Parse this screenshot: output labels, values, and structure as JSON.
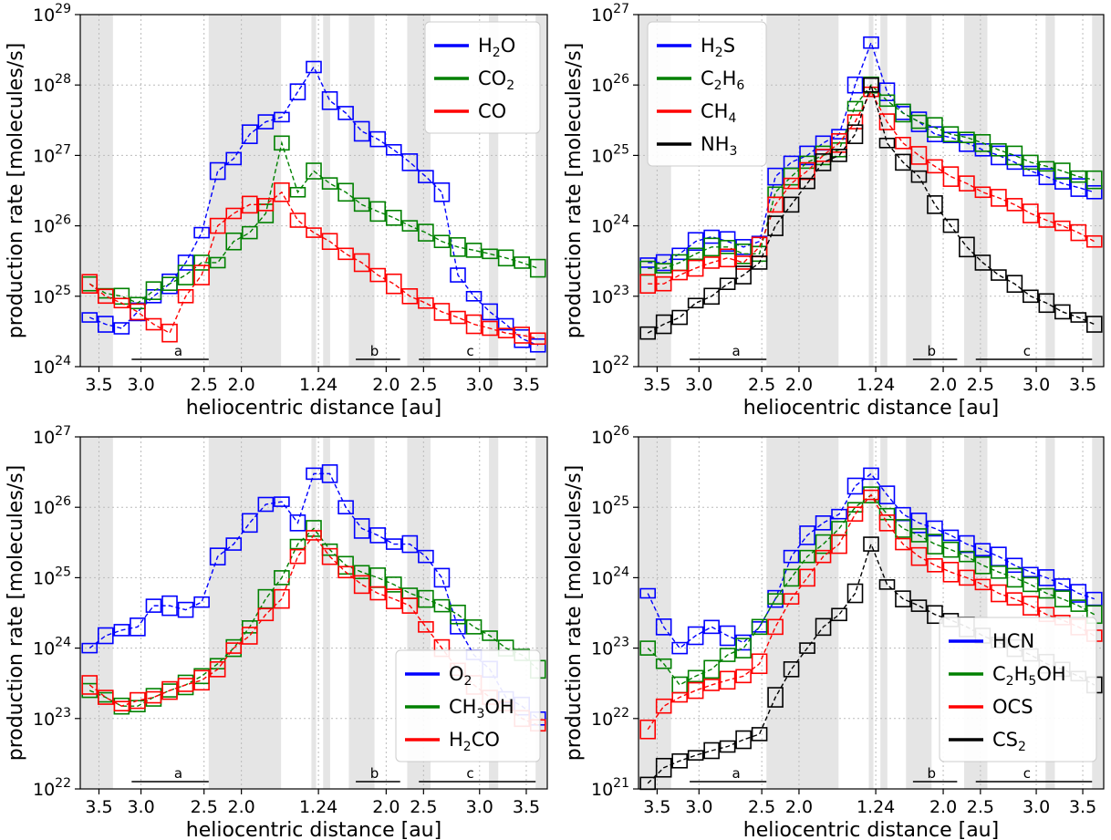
{
  "chart_data": [
    {
      "type": "scatter",
      "xlabel": "heliocentric distance [au]",
      "ylabel": "production rate [molecules/s]",
      "y_scale": "log",
      "ylim": [
        1e+24,
        1e+29
      ],
      "y_ticks": [
        {
          "base": "10",
          "exp": "24"
        },
        {
          "base": "10",
          "exp": "25"
        },
        {
          "base": "10",
          "exp": "26"
        },
        {
          "base": "10",
          "exp": "27"
        },
        {
          "base": "10",
          "exp": "28"
        },
        {
          "base": "10",
          "exp": "29"
        }
      ],
      "x_ticks": [
        "3.5",
        "3.0",
        "2.5",
        "2.0",
        "1.24",
        "2.0",
        "2.5",
        "3.0",
        "3.5"
      ],
      "grid": true,
      "legend_position": "top-right",
      "segments": [
        "a",
        "b",
        "c"
      ],
      "series": [
        {
          "name": "H2O",
          "color": "#0000ff",
          "values": [
            5e+24,
            4e+24,
            3.5e+24,
            6e+24,
            1e+25,
            1.5e+25,
            3e+25,
            8e+25,
            6e+26,
            9e+26,
            2e+27,
            3e+27,
            3.5e+27,
            8e+27,
            1.8e+28,
            6e+27,
            4e+27,
            2.2e+27,
            1.7e+27,
            1.2e+27,
            8e+26,
            5e+26,
            3e+26,
            2e+25,
            1e+25,
            6e+24,
            4e+24,
            2.5e+24,
            2e+24
          ]
        },
        {
          "name": "CO2",
          "color": "#008000",
          "values": [
            1.5e+25,
            1.1e+25,
            1e+25,
            8e+24,
            1.2e+25,
            1.5e+25,
            2e+25,
            3e+25,
            3e+25,
            6e+25,
            8e+25,
            1.5e+26,
            1.5e+27,
            3e+26,
            6e+26,
            4e+26,
            3e+26,
            2e+26,
            1.6e+26,
            1.3e+26,
            1e+26,
            8e+25,
            6e+25,
            5e+25,
            4.5e+25,
            4e+25,
            3.5e+25,
            3e+25,
            2.5e+25
          ]
        },
        {
          "name": "CO",
          "color": "#ff0000",
          "values": [
            1.5e+25,
            1e+25,
            8e+24,
            6e+24,
            4e+24,
            3e+24,
            1e+25,
            2e+25,
            1e+26,
            1.5e+26,
            2e+26,
            2e+26,
            3e+26,
            1.2e+26,
            8e+25,
            6e+25,
            4e+25,
            3e+25,
            2e+25,
            1.5e+25,
            1e+25,
            8e+24,
            6e+24,
            5e+24,
            4e+24,
            3.5e+24,
            3e+24,
            2.8e+24,
            2.5e+24
          ]
        }
      ]
    },
    {
      "type": "scatter",
      "xlabel": "heliocentric distance [au]",
      "ylabel": "production rate [molecules/s]",
      "y_scale": "log",
      "ylim": [
        1e+22,
        1e+27
      ],
      "y_ticks": [
        {
          "base": "10",
          "exp": "22"
        },
        {
          "base": "10",
          "exp": "23"
        },
        {
          "base": "10",
          "exp": "24"
        },
        {
          "base": "10",
          "exp": "25"
        },
        {
          "base": "10",
          "exp": "26"
        },
        {
          "base": "10",
          "exp": "27"
        }
      ],
      "x_ticks": [
        "3.5",
        "3.0",
        "2.5",
        "2.0",
        "1.24",
        "2.0",
        "2.5",
        "3.0",
        "3.5"
      ],
      "grid": true,
      "legend_position": "top-left",
      "segments": [
        "a",
        "b",
        "c"
      ],
      "series": [
        {
          "name": "H2S",
          "color": "#0000ff",
          "values": [
            3e+23,
            3e+23,
            4e+23,
            6e+23,
            7e+23,
            6e+23,
            5e+23,
            6e+23,
            5e+24,
            8e+24,
            1e+25,
            1.5e+25,
            2e+25,
            1e+26,
            4e+26,
            8e+25,
            4e+25,
            3e+25,
            2e+25,
            1.8e+25,
            1.5e+25,
            1.2e+25,
            1e+25,
            8e+24,
            6e+24,
            5e+24,
            4e+24,
            3.5e+24,
            3e+24
          ]
        },
        {
          "name": "C2H6",
          "color": "#008000",
          "values": [
            2.5e+23,
            2.5e+23,
            3e+23,
            4e+23,
            5e+23,
            5e+23,
            4e+23,
            4e+23,
            3e+24,
            5e+24,
            8e+24,
            1e+25,
            1.2e+25,
            5e+25,
            1e+26,
            6e+25,
            4e+25,
            3e+25,
            2.5e+25,
            2e+25,
            1.8e+25,
            1.5e+25,
            1.2e+25,
            1e+25,
            8e+24,
            7e+24,
            6e+24,
            5e+24,
            4.5e+24
          ]
        },
        {
          "name": "CH4",
          "color": "#ff0000",
          "values": [
            1.5e+23,
            1.5e+23,
            2e+23,
            2.5e+23,
            3e+23,
            3.5e+23,
            3e+23,
            5e+23,
            2e+24,
            4e+24,
            6e+24,
            1e+25,
            1.5e+25,
            3e+25,
            8e+25,
            3e+25,
            1.5e+25,
            1e+25,
            7e+24,
            5e+24,
            4e+24,
            3e+24,
            2.5e+24,
            2e+24,
            1.5e+24,
            1.2e+24,
            1e+24,
            8e+23,
            6e+23
          ]
        },
        {
          "name": "NH3",
          "color": "#000000",
          "values": [
            3e+22,
            4e+22,
            5e+22,
            8e+22,
            1e+23,
            1.5e+23,
            2e+23,
            3e+23,
            1e+24,
            2e+24,
            4e+24,
            8e+24,
            1e+25,
            2e+25,
            1e+26,
            1.5e+25,
            8e+24,
            5e+24,
            2e+24,
            1e+24,
            5e+23,
            3e+23,
            2e+23,
            1.5e+23,
            1e+23,
            8e+22,
            6e+22,
            5e+22,
            4e+22
          ]
        }
      ]
    },
    {
      "type": "scatter",
      "xlabel": "heliocentric distance [au]",
      "ylabel": "production rate [molecules/s]",
      "y_scale": "log",
      "ylim": [
        1e+22,
        1e+27
      ],
      "y_ticks": [
        {
          "base": "10",
          "exp": "22"
        },
        {
          "base": "10",
          "exp": "23"
        },
        {
          "base": "10",
          "exp": "24"
        },
        {
          "base": "10",
          "exp": "25"
        },
        {
          "base": "10",
          "exp": "26"
        },
        {
          "base": "10",
          "exp": "27"
        }
      ],
      "x_ticks": [
        "3.5",
        "3.0",
        "2.5",
        "2.0",
        "1.24",
        "2.0",
        "2.5",
        "3.0",
        "3.5"
      ],
      "grid": true,
      "legend_position": "bottom-right",
      "segments": [
        "a",
        "b",
        "c"
      ],
      "series": [
        {
          "name": "O2",
          "color": "#0000ff",
          "values": [
            1e+24,
            1.5e+24,
            1.8e+24,
            2e+24,
            4e+24,
            4e+24,
            3.5e+24,
            4.5e+24,
            2e+25,
            3e+25,
            6e+25,
            1.1e+26,
            1.2e+26,
            6e+25,
            3e+26,
            3e+26,
            1e+26,
            5e+25,
            4e+25,
            3e+25,
            3e+25,
            2e+25,
            1e+25,
            2e+24,
            8e+23,
            5e+23,
            2e+23,
            1.5e+23,
            1e+23
          ]
        },
        {
          "name": "CH3OH",
          "color": "#008000",
          "values": [
            2.5e+23,
            2e+23,
            1.5e+23,
            1.5e+23,
            2e+23,
            2.5e+23,
            3e+23,
            4e+23,
            6e+23,
            1e+24,
            2e+24,
            5e+24,
            1e+25,
            3e+25,
            5e+25,
            2.5e+25,
            1.5e+25,
            1.2e+25,
            1e+25,
            8e+24,
            6e+24,
            5e+24,
            4e+24,
            3e+24,
            2e+24,
            1.5e+24,
            1e+24,
            8e+23,
            5e+23
          ]
        },
        {
          "name": "H2CO",
          "color": "#ff0000",
          "values": [
            3e+23,
            2e+23,
            1.5e+23,
            1.8e+23,
            2e+23,
            2.5e+23,
            3e+23,
            3.5e+23,
            5e+23,
            1e+24,
            1.5e+24,
            3e+24,
            5e+24,
            2e+25,
            4e+25,
            2e+25,
            1.2e+25,
            8e+24,
            6e+24,
            5e+24,
            4e+24,
            2e+24,
            1e+24,
            5e+23,
            3e+23,
            2e+23,
            1.5e+23,
            1e+23,
            8e+22
          ]
        }
      ]
    },
    {
      "type": "scatter",
      "xlabel": "heliocentric distance [au]",
      "ylabel": "production rate [molecules/s]",
      "y_scale": "log",
      "ylim": [
        1e+21,
        1e+26
      ],
      "y_ticks": [
        {
          "base": "10",
          "exp": "21"
        },
        {
          "base": "10",
          "exp": "22"
        },
        {
          "base": "10",
          "exp": "23"
        },
        {
          "base": "10",
          "exp": "24"
        },
        {
          "base": "10",
          "exp": "25"
        },
        {
          "base": "10",
          "exp": "26"
        }
      ],
      "x_ticks": [
        "3.5",
        "3.0",
        "2.5",
        "2.0",
        "1.24",
        "2.0",
        "2.5",
        "3.0",
        "3.5"
      ],
      "grid": true,
      "legend_position": "bottom-right",
      "segments": [
        "a",
        "b",
        "c"
      ],
      "series": [
        {
          "name": "HCN",
          "color": "#0000ff",
          "values": [
            6e+23,
            2e+23,
            1e+23,
            1.5e+23,
            2e+23,
            1.5e+23,
            1.2e+23,
            2e+23,
            5e+23,
            2e+24,
            4e+24,
            6e+24,
            8e+24,
            2e+25,
            3e+25,
            1.5e+25,
            8e+24,
            6e+24,
            5e+24,
            4e+24,
            3e+24,
            2.5e+24,
            2e+24,
            1.5e+24,
            1.2e+24,
            1e+24,
            8e+23,
            6e+23,
            5e+23
          ]
        },
        {
          "name": "C2H5OH",
          "color": "#008000",
          "values": [
            1e+23,
            6e+22,
            3e+22,
            4e+22,
            5e+22,
            8e+22,
            1e+23,
            2e+23,
            5e+23,
            1e+24,
            2e+24,
            3e+24,
            5e+24,
            1e+25,
            1.5e+25,
            8e+24,
            5e+24,
            4e+24,
            3e+24,
            2.5e+24,
            2e+24,
            1.5e+24,
            1.2e+24,
            1e+24,
            8e+23,
            6e+23,
            5e+23,
            4e+23,
            3e+23
          ]
        },
        {
          "name": "OCS",
          "color": "#ff0000",
          "values": [
            7e+21,
            1.5e+22,
            2e+22,
            2.5e+22,
            3e+22,
            3.5e+22,
            4e+22,
            6e+22,
            2e+23,
            5e+23,
            1e+24,
            2e+24,
            3e+24,
            8e+24,
            1.5e+25,
            6e+24,
            3e+24,
            2e+24,
            1.5e+24,
            1.2e+24,
            1e+24,
            8e+23,
            6e+23,
            5e+23,
            4e+23,
            3e+23,
            2.5e+23,
            2e+23,
            1.5e+23
          ]
        },
        {
          "name": "CS2",
          "color": "#000000",
          "values": [
            1.2e+21,
            2e+21,
            2.5e+21,
            3e+21,
            3.5e+21,
            4e+21,
            5e+21,
            6e+21,
            2e+22,
            5e+22,
            1e+23,
            2e+23,
            3e+23,
            6e+23,
            3e+24,
            8e+23,
            5e+23,
            4e+23,
            3e+23,
            2.5e+23,
            2e+23,
            1.5e+23,
            1.2e+23,
            1e+23,
            8e+22,
            6e+22,
            5e+22,
            4e+22,
            3e+22
          ]
        }
      ]
    }
  ]
}
